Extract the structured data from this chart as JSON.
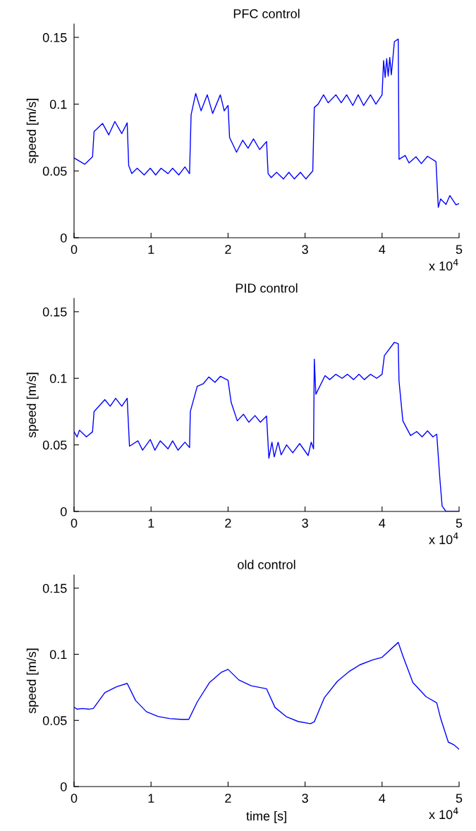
{
  "chart_data": [
    {
      "type": "line",
      "title": "PFC control",
      "ylabel": "speed [m/s]",
      "annotations": [
        "x 10$^{4}$"
      ],
      "xlim": [
        0,
        5
      ],
      "ylim": [
        0,
        0.16
      ],
      "xticks": [
        0,
        1,
        2,
        3,
        4,
        5
      ],
      "yticks": [
        0,
        0.05,
        0.1,
        0.15
      ],
      "grid": false,
      "marker": "none",
      "line_style": "solid",
      "series": [
        {
          "color": "#0000ff",
          "x": [
            0,
            0.14,
            0.24,
            0.26,
            0.37,
            0.45,
            0.53,
            0.62,
            0.69,
            0.71,
            0.75,
            0.82,
            0.91,
            0.99,
            1.06,
            1.13,
            1.22,
            1.28,
            1.36,
            1.44,
            1.5,
            1.52,
            1.58,
            1.65,
            1.73,
            1.8,
            1.9,
            1.95,
            2.0,
            2.02,
            2.11,
            2.19,
            2.26,
            2.33,
            2.41,
            2.5,
            2.52,
            2.56,
            2.63,
            2.72,
            2.79,
            2.86,
            2.94,
            3.01,
            3.1,
            3.12,
            3.17,
            3.24,
            3.3,
            3.4,
            3.47,
            3.54,
            3.62,
            3.69,
            3.76,
            3.85,
            3.92,
            4.0,
            4.02,
            4.04,
            4.06,
            4.08,
            4.1,
            4.12,
            4.14,
            4.16,
            4.21,
            4.22,
            4.3,
            4.35,
            4.44,
            4.51,
            4.59,
            4.7,
            4.73,
            4.76,
            4.83,
            4.88,
            4.96,
            5.0
          ],
          "values": [
            0.0597,
            0.055,
            0.0606,
            0.0795,
            0.0856,
            0.077,
            0.087,
            0.078,
            0.086,
            0.054,
            0.048,
            0.052,
            0.047,
            0.052,
            0.047,
            0.052,
            0.048,
            0.052,
            0.047,
            0.053,
            0.048,
            0.092,
            0.108,
            0.095,
            0.107,
            0.093,
            0.107,
            0.095,
            0.099,
            0.075,
            0.064,
            0.073,
            0.067,
            0.074,
            0.066,
            0.072,
            0.048,
            0.045,
            0.049,
            0.044,
            0.049,
            0.044,
            0.049,
            0.044,
            0.05,
            0.0975,
            0.1,
            0.107,
            0.101,
            0.107,
            0.101,
            0.107,
            0.099,
            0.107,
            0.099,
            0.107,
            0.1,
            0.107,
            0.1326,
            0.12,
            0.134,
            0.121,
            0.135,
            0.122,
            0.134,
            0.1468,
            0.1487,
            0.0587,
            0.0616,
            0.056,
            0.0606,
            0.0555,
            0.061,
            0.057,
            0.0227,
            0.029,
            0.025,
            0.0316,
            0.0246,
            0.0256
          ]
        }
      ]
    },
    {
      "type": "line",
      "title": "PID control",
      "ylabel": "speed [m/s]",
      "annotations": [
        "x 10$^{4}$"
      ],
      "xlim": [
        0,
        5
      ],
      "ylim": [
        0,
        0.16
      ],
      "xticks": [
        0,
        1,
        2,
        3,
        4,
        5
      ],
      "yticks": [
        0,
        0.05,
        0.1,
        0.15
      ],
      "grid": false,
      "marker": "none",
      "line_style": "solid",
      "series": [
        {
          "color": "#0000ff",
          "x": [
            0,
            0.04,
            0.07,
            0.16,
            0.24,
            0.26,
            0.4,
            0.47,
            0.54,
            0.62,
            0.69,
            0.72,
            0.83,
            0.89,
            0.99,
            1.05,
            1.12,
            1.22,
            1.28,
            1.35,
            1.44,
            1.5,
            1.51,
            1.6,
            1.68,
            1.75,
            1.83,
            1.9,
            2.0,
            2.04,
            2.12,
            2.2,
            2.27,
            2.35,
            2.42,
            2.5,
            2.53,
            2.57,
            2.6,
            2.65,
            2.69,
            2.76,
            2.84,
            2.93,
            3.04,
            3.08,
            3.11,
            3.12,
            3.14,
            3.26,
            3.32,
            3.4,
            3.48,
            3.55,
            3.63,
            3.7,
            3.77,
            3.85,
            3.93,
            4.0,
            4.03,
            4.16,
            4.21,
            4.22,
            4.27,
            4.37,
            4.45,
            4.52,
            4.59,
            4.66,
            4.71,
            4.75,
            4.78,
            4.83,
            5.0
          ],
          "values": [
            0.0598,
            0.056,
            0.061,
            0.056,
            0.0598,
            0.075,
            0.084,
            0.079,
            0.085,
            0.079,
            0.085,
            0.049,
            0.053,
            0.046,
            0.054,
            0.046,
            0.053,
            0.047,
            0.053,
            0.046,
            0.052,
            0.048,
            0.075,
            0.094,
            0.096,
            0.101,
            0.097,
            0.1015,
            0.0985,
            0.082,
            0.068,
            0.073,
            0.067,
            0.072,
            0.067,
            0.0716,
            0.04,
            0.052,
            0.041,
            0.052,
            0.0425,
            0.05,
            0.044,
            0.051,
            0.042,
            0.052,
            0.047,
            0.1144,
            0.088,
            0.102,
            0.099,
            0.103,
            0.1,
            0.103,
            0.099,
            0.103,
            0.099,
            0.103,
            0.1,
            0.103,
            0.117,
            0.127,
            0.126,
            0.098,
            0.068,
            0.057,
            0.06,
            0.056,
            0.0605,
            0.056,
            0.058,
            0.025,
            0.004,
            0.0,
            0.0
          ]
        }
      ]
    },
    {
      "type": "line",
      "title": "old control",
      "ylabel": "speed [m/s]",
      "xlabel": "time [s]",
      "annotations": [
        "x 10$^{4}$"
      ],
      "xlim": [
        0,
        5
      ],
      "ylim": [
        0,
        0.16
      ],
      "xticks": [
        0,
        1,
        2,
        3,
        4,
        5
      ],
      "yticks": [
        0,
        0.05,
        0.1,
        0.15
      ],
      "grid": false,
      "marker": "none",
      "line_style": "solid",
      "series": [
        {
          "color": "#0000ff",
          "x": [
            0,
            0.04,
            0.11,
            0.19,
            0.25,
            0.4,
            0.55,
            0.69,
            0.8,
            0.94,
            1.09,
            1.24,
            1.39,
            1.49,
            1.6,
            1.76,
            1.91,
            2.0,
            2.14,
            2.3,
            2.5,
            2.61,
            2.76,
            2.91,
            3.07,
            3.12,
            3.25,
            3.42,
            3.58,
            3.71,
            3.88,
            4.0,
            4.21,
            4.27,
            4.4,
            4.57,
            4.71,
            4.76,
            4.86,
            4.93,
            5.0
          ],
          "values": [
            0.06,
            0.0585,
            0.059,
            0.0585,
            0.059,
            0.071,
            0.0754,
            0.078,
            0.065,
            0.0566,
            0.053,
            0.0514,
            0.0508,
            0.0508,
            0.064,
            0.0787,
            0.0863,
            0.0886,
            0.0806,
            0.0762,
            0.0739,
            0.0598,
            0.0527,
            0.0492,
            0.0475,
            0.049,
            0.0671,
            0.0796,
            0.0873,
            0.092,
            0.0958,
            0.0977,
            0.109,
            0.0988,
            0.0787,
            0.068,
            0.0633,
            0.0517,
            0.0336,
            0.0317,
            0.0282
          ]
        }
      ]
    }
  ]
}
